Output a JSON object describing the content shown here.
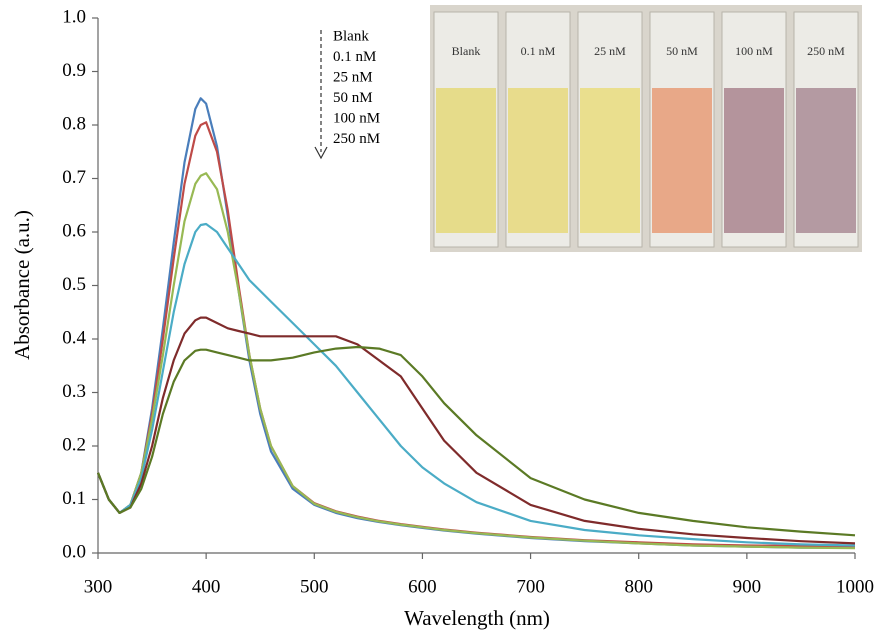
{
  "chart_data": {
    "type": "line",
    "x_label": "Wavelength (nm)",
    "y_label": "Absorbance (a.u.)",
    "x": [
      300,
      310,
      320,
      330,
      340,
      350,
      360,
      370,
      380,
      390,
      395,
      400,
      410,
      420,
      430,
      440,
      450,
      460,
      480,
      500,
      520,
      540,
      560,
      580,
      600,
      620,
      650,
      700,
      750,
      800,
      850,
      900,
      950,
      1000
    ],
    "series": [
      {
        "name": "Blank",
        "color": "#4a7ebb",
        "values": [
          0.15,
          0.1,
          0.075,
          0.09,
          0.15,
          0.27,
          0.42,
          0.58,
          0.73,
          0.83,
          0.85,
          0.84,
          0.76,
          0.63,
          0.49,
          0.36,
          0.26,
          0.19,
          0.12,
          0.09,
          0.075,
          0.065,
          0.058,
          0.052,
          0.047,
          0.042,
          0.036,
          0.028,
          0.022,
          0.018,
          0.014,
          0.012,
          0.01,
          0.01
        ]
      },
      {
        "name": "0.1 nM",
        "color": "#be4b48",
        "values": [
          0.15,
          0.1,
          0.075,
          0.09,
          0.15,
          0.26,
          0.4,
          0.55,
          0.69,
          0.78,
          0.8,
          0.805,
          0.75,
          0.64,
          0.5,
          0.37,
          0.27,
          0.2,
          0.125,
          0.093,
          0.078,
          0.068,
          0.06,
          0.054,
          0.049,
          0.044,
          0.038,
          0.03,
          0.024,
          0.02,
          0.016,
          0.014,
          0.013,
          0.012
        ]
      },
      {
        "name": "25 nM",
        "color": "#98b954",
        "values": [
          0.15,
          0.1,
          0.075,
          0.09,
          0.15,
          0.25,
          0.37,
          0.5,
          0.62,
          0.69,
          0.705,
          0.71,
          0.68,
          0.6,
          0.49,
          0.37,
          0.27,
          0.2,
          0.125,
          0.092,
          0.077,
          0.067,
          0.059,
          0.053,
          0.048,
          0.043,
          0.037,
          0.029,
          0.023,
          0.018,
          0.014,
          0.012,
          0.01,
          0.009
        ]
      },
      {
        "name": "50 nM",
        "color": "#4bacc6",
        "values": [
          0.15,
          0.1,
          0.075,
          0.09,
          0.14,
          0.23,
          0.34,
          0.45,
          0.54,
          0.6,
          0.613,
          0.615,
          0.6,
          0.57,
          0.54,
          0.51,
          0.49,
          0.47,
          0.43,
          0.39,
          0.35,
          0.3,
          0.25,
          0.2,
          0.16,
          0.13,
          0.095,
          0.06,
          0.043,
          0.033,
          0.026,
          0.02,
          0.016,
          0.014
        ]
      },
      {
        "name": "100 nM",
        "color": "#7f2b2b",
        "values": [
          0.15,
          0.1,
          0.075,
          0.085,
          0.13,
          0.2,
          0.29,
          0.36,
          0.41,
          0.435,
          0.44,
          0.44,
          0.43,
          0.42,
          0.415,
          0.41,
          0.405,
          0.405,
          0.405,
          0.405,
          0.405,
          0.39,
          0.36,
          0.33,
          0.27,
          0.21,
          0.15,
          0.09,
          0.06,
          0.045,
          0.035,
          0.028,
          0.022,
          0.018
        ]
      },
      {
        "name": "250 nM",
        "color": "#5b7a25",
        "values": [
          0.15,
          0.1,
          0.075,
          0.085,
          0.12,
          0.18,
          0.26,
          0.32,
          0.36,
          0.378,
          0.38,
          0.38,
          0.375,
          0.37,
          0.365,
          0.36,
          0.36,
          0.36,
          0.365,
          0.375,
          0.382,
          0.385,
          0.382,
          0.37,
          0.33,
          0.28,
          0.22,
          0.14,
          0.1,
          0.075,
          0.06,
          0.048,
          0.04,
          0.033
        ]
      }
    ],
    "xlim": [
      300,
      1000
    ],
    "xticks": [
      300,
      400,
      500,
      600,
      700,
      800,
      900,
      1000
    ],
    "ylim": [
      0,
      1
    ],
    "yticks": [
      {
        "value": 0,
        "label": "0.0"
      },
      0.1,
      0.2,
      0.3,
      0.4,
      0.5,
      0.6,
      0.7,
      0.8,
      0.9,
      {
        "value": 1,
        "label": "1.0"
      }
    ]
  }
}
